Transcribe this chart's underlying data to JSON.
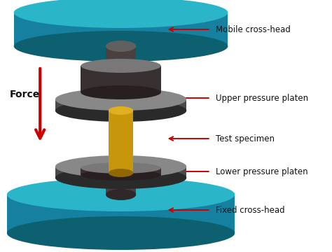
{
  "bg": "#ffffff",
  "teal_top": "#2bb5c8",
  "teal_side": "#1580a0",
  "teal_bot": "#0d6070",
  "shaft_body": "#4a4040",
  "shaft_top": "#606060",
  "platen_top": "#787878",
  "platen_side": "#383030",
  "platen_flange_top": "#888888",
  "platen_flange_side": "#4a4a4a",
  "gold_body": "#c8960a",
  "gold_top": "#e0b020",
  "gold_bot": "#906800",
  "red": "#cc0000",
  "black": "#111111",
  "labels": [
    "Mobile cross-head",
    "Upper pressure platen",
    "Test specimen",
    "Lower pressure platen",
    "Fixed cross-head"
  ],
  "label_fontsize": 8.5,
  "force_fontsize": 10
}
